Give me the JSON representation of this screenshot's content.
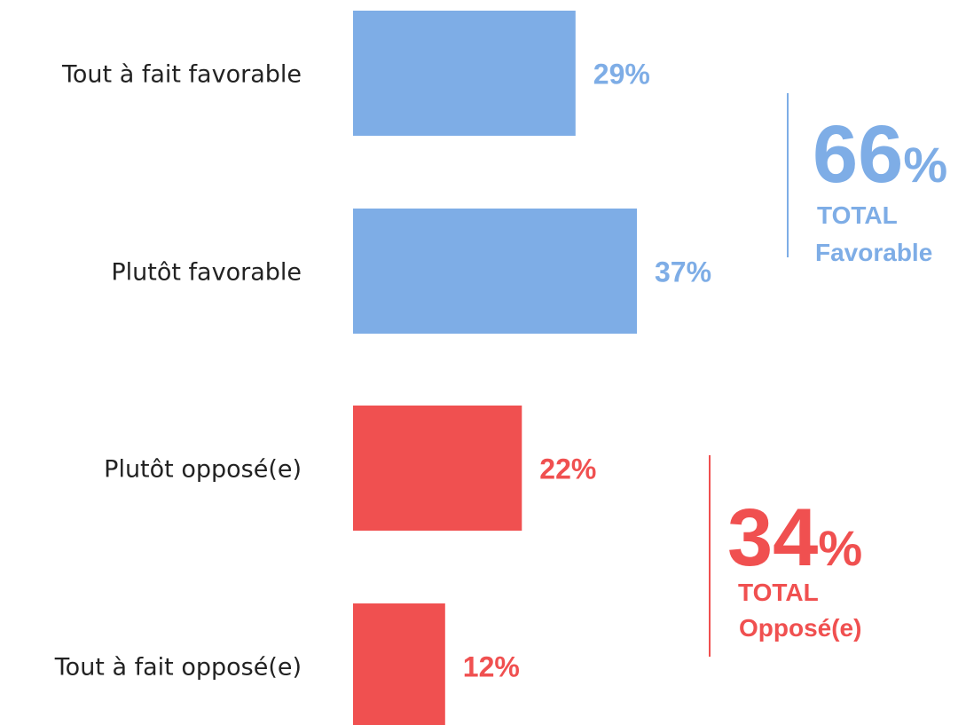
{
  "chart_data": {
    "type": "bar",
    "orientation": "horizontal",
    "categories": [
      "Tout à fait favorable",
      "Plutôt favorable",
      "Plutôt opposé(e)",
      "Tout à fait opposé(e)"
    ],
    "values": [
      29,
      37,
      22,
      12
    ],
    "value_labels": [
      "29%",
      "37%",
      "22%",
      "12%"
    ],
    "bar_colors": [
      "#7eade6",
      "#7eade6",
      "#f05050",
      "#f05050"
    ],
    "xlim": [
      0,
      37
    ],
    "title": "",
    "xlabel": "",
    "ylabel": "",
    "grid": false,
    "totals": [
      {
        "value": "66",
        "unit": "%",
        "line1": "TOTAL",
        "line2": "Favorable",
        "color": "#7eade6",
        "covers": [
          "Tout à fait favorable",
          "Plutôt favorable"
        ]
      },
      {
        "value": "34",
        "unit": "%",
        "line1": "TOTAL",
        "line2": "Opposé(e)",
        "color": "#f05050",
        "covers": [
          "Plutôt opposé(e)",
          "Tout à fait opposé(e)"
        ]
      }
    ]
  }
}
